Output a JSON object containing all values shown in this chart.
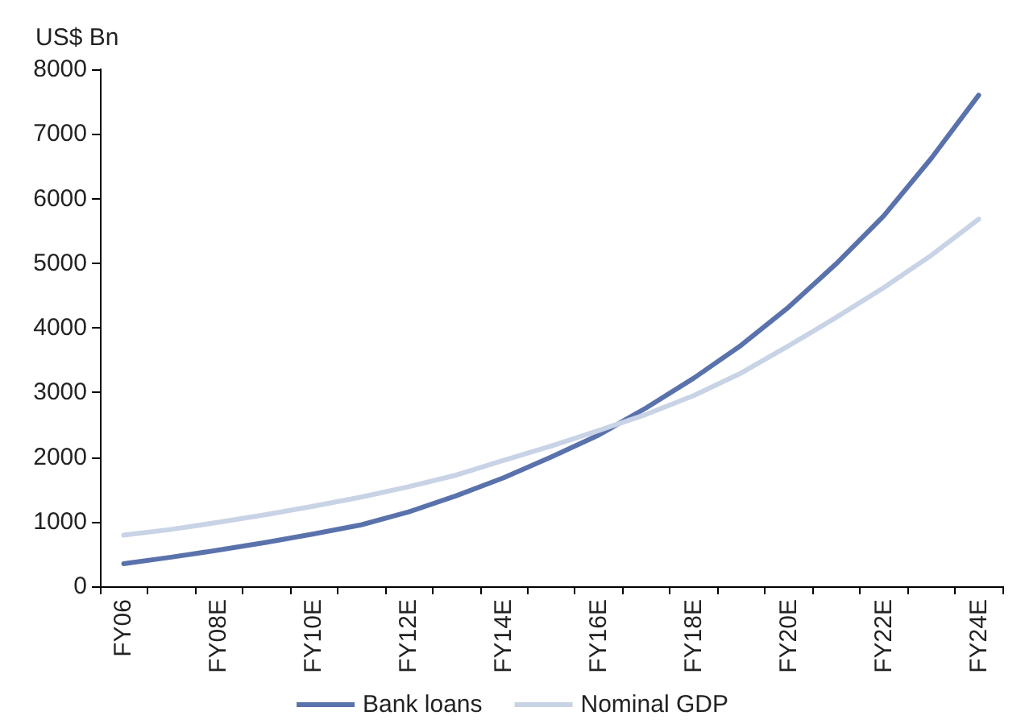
{
  "chart_data": {
    "type": "line",
    "ylabel": "US$ Bn",
    "categories": [
      "FY06",
      null,
      "FY08E",
      null,
      "FY10E",
      null,
      "FY12E",
      null,
      "FY14E",
      null,
      "FY16E",
      null,
      "FY18E",
      null,
      "FY20E",
      null,
      "FY22E",
      null,
      "FY24E"
    ],
    "series": [
      {
        "name": "Bank loans",
        "color": "#5a72ac",
        "values": [
          350,
          450,
          560,
          680,
          810,
          950,
          1150,
          1400,
          1680,
          2000,
          2340,
          2760,
          3220,
          3730,
          4320,
          4990,
          5730,
          6620,
          7600
        ]
      },
      {
        "name": "Nominal GDP",
        "color": "#c8d3e6",
        "values": [
          790,
          880,
          990,
          1110,
          1240,
          1380,
          1540,
          1720,
          1950,
          2170,
          2410,
          2660,
          2950,
          3300,
          3720,
          4160,
          4620,
          5120,
          5680
        ]
      }
    ],
    "ylim": [
      0,
      8000
    ],
    "yticks": [
      0,
      1000,
      2000,
      3000,
      4000,
      5000,
      6000,
      7000,
      8000
    ],
    "grid": false,
    "legend": "bottom",
    "marker": "none",
    "line_style": "solid"
  }
}
